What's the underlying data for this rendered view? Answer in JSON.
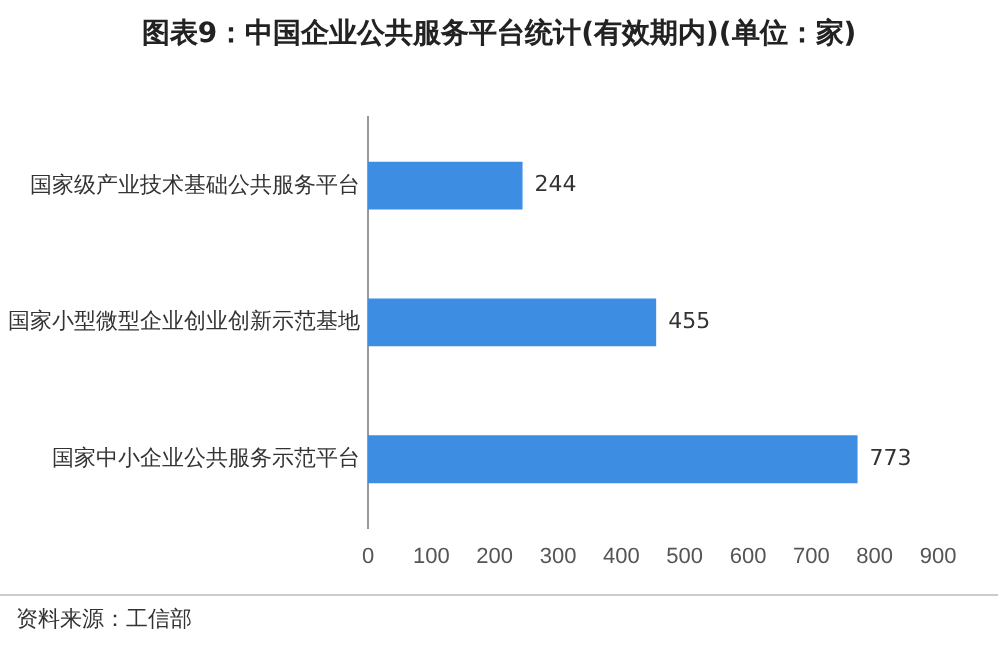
{
  "chart_data": {
    "type": "bar",
    "orientation": "horizontal",
    "title": "图表9：中国企业公共服务平台统计(有效期内)(单位：家)",
    "categories": [
      "国家级产业技术基础公共服务平台",
      "国家小型微型企业创业创新示范基地",
      "国家中小企业公共服务示范平台"
    ],
    "values": [
      244,
      455,
      773
    ],
    "color": "#3d8ee3",
    "xlim": [
      0,
      900
    ],
    "xticks": [
      0,
      100,
      200,
      300,
      400,
      500,
      600,
      700,
      800,
      900
    ],
    "grid": false,
    "data_labels": true,
    "annotations": [
      "资料来源：工信部"
    ]
  }
}
